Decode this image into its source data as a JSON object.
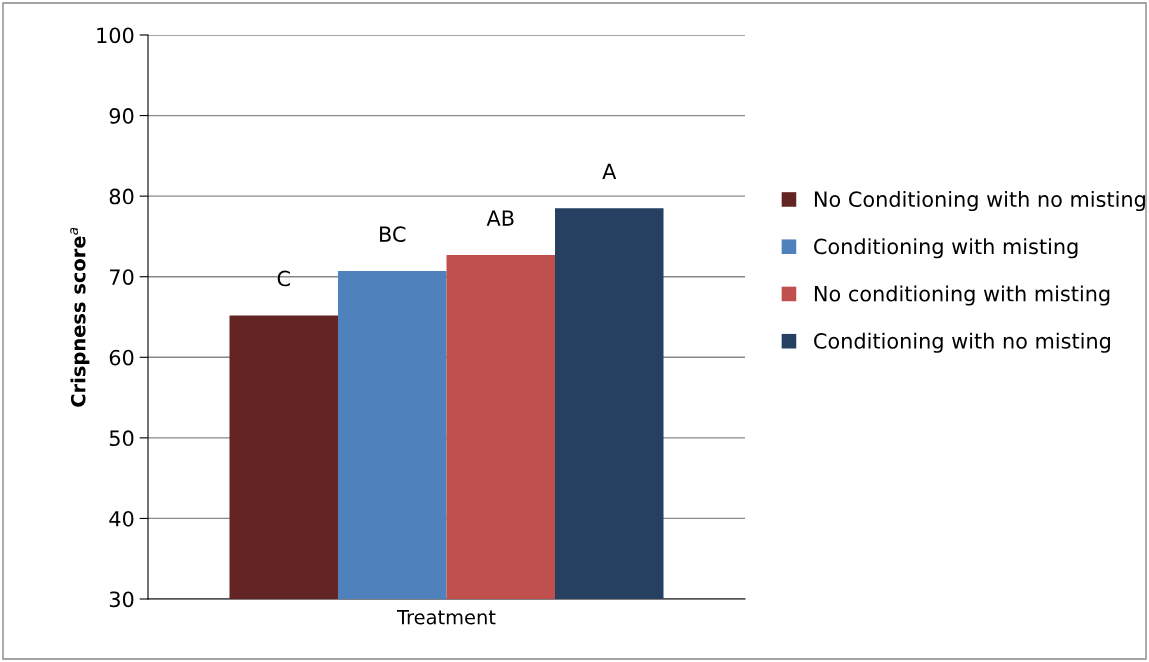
{
  "chart_data": {
    "type": "bar",
    "xlabel": "Treatment",
    "ylabel": "Crispness score$^{a}$",
    "categories": [
      null
    ],
    "series": [
      {
        "name": "No Conditioning with no misting",
        "color": "#632523",
        "values": [
          65.2
        ]
      },
      {
        "name": "Conditioning with misting",
        "color": "#4f81bd",
        "values": [
          70.7
        ]
      },
      {
        "name": "No conditioning with misting",
        "color": "#c0504d",
        "values": [
          72.7
        ]
      },
      {
        "name": "Conditioning with no misting",
        "color": "#254061",
        "values": [
          78.5
        ]
      }
    ],
    "ylim": [
      30,
      100
    ],
    "yticks": [
      30,
      40,
      50,
      60,
      70,
      80,
      90,
      100
    ],
    "grid": "y",
    "legend": "right",
    "annotations": [
      {
        "text": "C",
        "y": 65.2
      },
      {
        "text": "BC",
        "y": 70.7
      },
      {
        "text": "AB",
        "y": 72.7
      },
      {
        "text": "A",
        "y": 78.5
      }
    ]
  }
}
